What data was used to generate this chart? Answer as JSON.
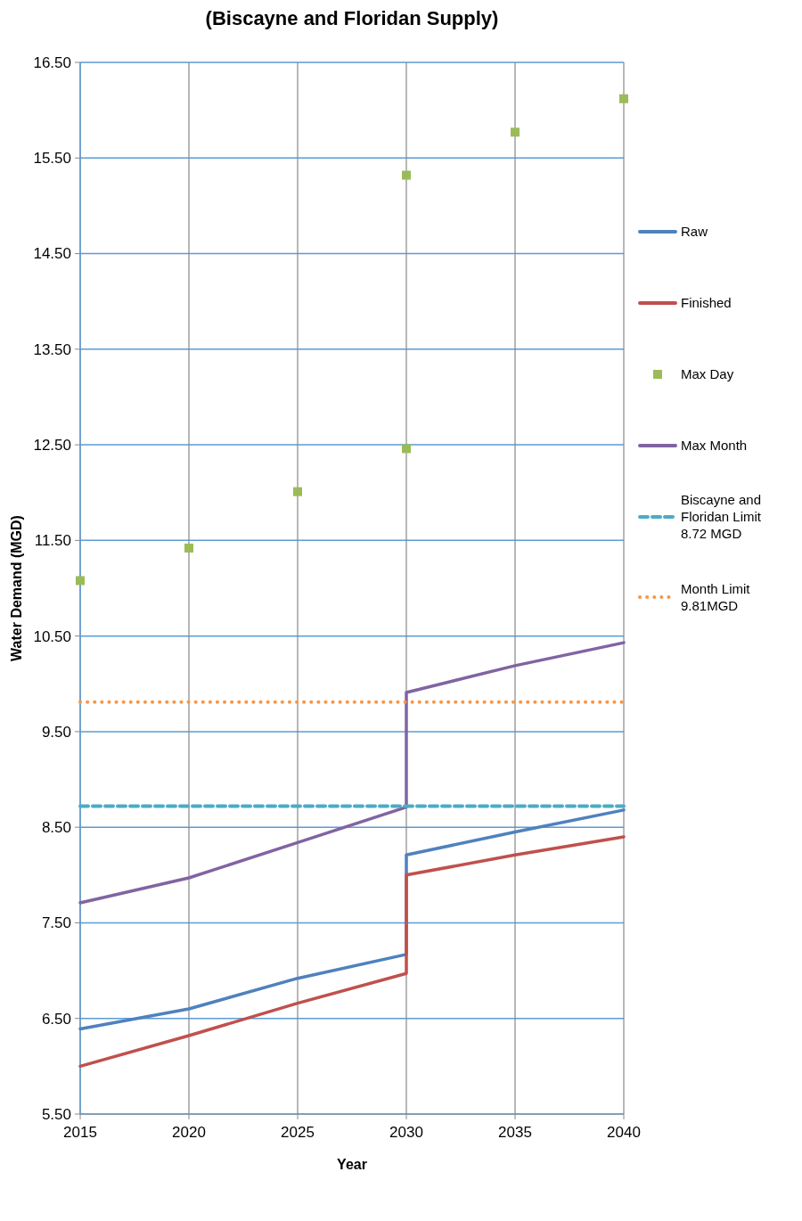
{
  "chart_data": {
    "type": "line",
    "title": "(Biscayne and Floridan Supply)",
    "xlabel": "Year",
    "ylabel": "Water Demand (MGD)",
    "xlim": [
      2015,
      2040
    ],
    "xticks": [
      2015,
      2020,
      2025,
      2030,
      2035,
      2040
    ],
    "ylim": [
      5.5,
      16.5
    ],
    "yticks": [
      {
        "value": 5.5,
        "label": "5.50"
      },
      {
        "value": 6.5,
        "label": "6.50"
      },
      {
        "value": 7.5,
        "label": "7.50"
      },
      {
        "value": 8.5,
        "label": "8.50"
      },
      {
        "value": 9.5,
        "label": "9.50"
      },
      {
        "value": 10.5,
        "label": "10.50"
      },
      {
        "value": 11.5,
        "label": "11.50"
      },
      {
        "value": 12.5,
        "label": "12.50"
      },
      {
        "value": 13.5,
        "label": "13.50"
      },
      {
        "value": 14.5,
        "label": "14.50"
      },
      {
        "value": 15.5,
        "label": "15.50"
      },
      {
        "value": 16.5,
        "label": "16.50"
      }
    ],
    "grid": true,
    "legend": "right",
    "marker": "none",
    "line_style": "solid",
    "series": [
      {
        "name": "Raw",
        "color": "#4f81bd",
        "x": [
          2015,
          2020,
          2025,
          2030,
          2030,
          2035,
          2040
        ],
        "values": [
          6.39,
          6.6,
          6.92,
          7.17,
          8.21,
          8.45,
          8.68
        ]
      },
      {
        "name": "Finished",
        "color": "#c0504d",
        "x": [
          2015,
          2020,
          2025,
          2030,
          2030,
          2035,
          2040
        ],
        "values": [
          6.0,
          6.32,
          6.66,
          6.97,
          8.0,
          8.21,
          8.4
        ]
      },
      {
        "name": "Max Day",
        "type": "scatter",
        "marker": "square",
        "color": "#9bbb59",
        "x": [
          2015,
          2020,
          2025,
          2030,
          2030,
          2035,
          2040
        ],
        "values": [
          11.08,
          11.42,
          12.01,
          12.46,
          15.32,
          15.77,
          16.12
        ]
      },
      {
        "name": "Max Month",
        "color": "#8064a2",
        "x": [
          2015,
          2020,
          2025,
          2030,
          2030,
          2035,
          2040
        ],
        "values": [
          7.71,
          7.97,
          8.34,
          8.71,
          9.91,
          10.19,
          10.43
        ]
      }
    ],
    "ref_lines": [
      {
        "axis": "y",
        "value": 8.72,
        "label": "Biscayne and Floridan Limit 8.72 MGD",
        "color": "#4bacc6",
        "line_style": "dashed"
      },
      {
        "axis": "y",
        "value": 9.81,
        "label": "Month Limit 9.81MGD",
        "color": "#f79646",
        "line_style": "dotted"
      }
    ]
  }
}
